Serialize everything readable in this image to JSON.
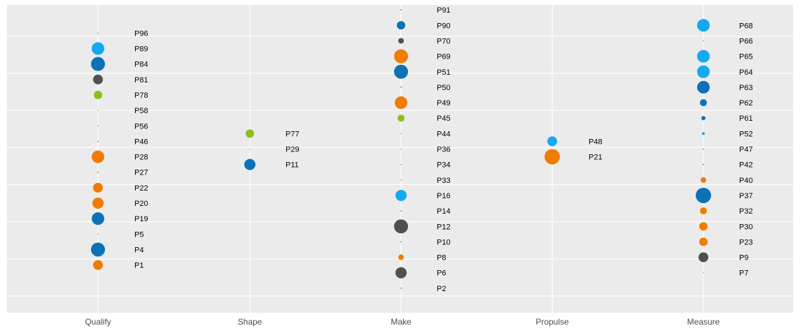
{
  "colors": {
    "panel_bg": "#ebebeb",
    "grid": "#ffffff",
    "orange": "#f07c00",
    "sky": "#12a9f5",
    "blue": "#0c72b8",
    "gray": "#505050",
    "green": "#8cbf1a"
  },
  "chart_data": {
    "type": "scatter",
    "title": "",
    "xlabel": "",
    "ylabel": "",
    "categories": [
      "Qualify",
      "Shape",
      "Make",
      "Propulse",
      "Measure"
    ],
    "ylim": [
      0,
      20.5
    ],
    "grid": true,
    "legend": "none",
    "series": [
      {
        "category": "Qualify",
        "points": [
          {
            "label": "P96",
            "y": 17.5,
            "size": 0.3,
            "color": "orange"
          },
          {
            "label": "P89",
            "y": 16.5,
            "size": 9,
            "color": "sky"
          },
          {
            "label": "P84",
            "y": 15.5,
            "size": 10,
            "color": "blue"
          },
          {
            "label": "P81",
            "y": 14.5,
            "size": 7,
            "color": "gray"
          },
          {
            "label": "P78",
            "y": 13.5,
            "size": 6,
            "color": "green"
          },
          {
            "label": "P58",
            "y": 12.5,
            "size": 0.3,
            "color": "green"
          },
          {
            "label": "P56",
            "y": 11.5,
            "size": 0.3,
            "color": "sky"
          },
          {
            "label": "P46",
            "y": 10.5,
            "size": 0.3,
            "color": "blue"
          },
          {
            "label": "P28",
            "y": 9.5,
            "size": 9,
            "color": "orange"
          },
          {
            "label": "P27",
            "y": 8.5,
            "size": 0.3,
            "color": "gray"
          },
          {
            "label": "P22",
            "y": 7.5,
            "size": 7,
            "color": "orange"
          },
          {
            "label": "P20",
            "y": 6.5,
            "size": 8,
            "color": "orange"
          },
          {
            "label": "P19",
            "y": 5.5,
            "size": 9,
            "color": "blue"
          },
          {
            "label": "P5",
            "y": 4.5,
            "size": 0.3,
            "color": "orange"
          },
          {
            "label": "P4",
            "y": 3.5,
            "size": 10,
            "color": "blue"
          },
          {
            "label": "P1",
            "y": 2.5,
            "size": 7,
            "color": "orange"
          }
        ]
      },
      {
        "category": "Shape",
        "points": [
          {
            "label": "P77",
            "y": 11,
            "size": 6,
            "color": "green"
          },
          {
            "label": "P29",
            "y": 10,
            "size": 0.3,
            "color": "orange"
          },
          {
            "label": "P11",
            "y": 9,
            "size": 8,
            "color": "blue"
          }
        ]
      },
      {
        "category": "Make",
        "points": [
          {
            "label": "P91",
            "y": 19,
            "size": 0.3,
            "color": "gray"
          },
          {
            "label": "P90",
            "y": 18,
            "size": 6,
            "color": "blue"
          },
          {
            "label": "P70",
            "y": 17,
            "size": 4,
            "color": "gray"
          },
          {
            "label": "P69",
            "y": 16,
            "size": 10,
            "color": "orange"
          },
          {
            "label": "P51",
            "y": 15,
            "size": 10,
            "color": "blue"
          },
          {
            "label": "P50",
            "y": 14,
            "size": 0.3,
            "color": "gray"
          },
          {
            "label": "P49",
            "y": 13,
            "size": 9,
            "color": "orange"
          },
          {
            "label": "P45",
            "y": 12,
            "size": 5,
            "color": "green"
          },
          {
            "label": "P44",
            "y": 11,
            "size": 0.3,
            "color": "orange"
          },
          {
            "label": "P36",
            "y": 10,
            "size": 0.3,
            "color": "orange"
          },
          {
            "label": "P34",
            "y": 9,
            "size": 0.3,
            "color": "orange"
          },
          {
            "label": "P33",
            "y": 8,
            "size": 0.3,
            "color": "orange"
          },
          {
            "label": "P16",
            "y": 7,
            "size": 8,
            "color": "sky"
          },
          {
            "label": "P14",
            "y": 6,
            "size": 0.3,
            "color": "gray"
          },
          {
            "label": "P12",
            "y": 5,
            "size": 10,
            "color": "gray"
          },
          {
            "label": "P10",
            "y": 4,
            "size": 0.3,
            "color": "gray"
          },
          {
            "label": "P8",
            "y": 3,
            "size": 4,
            "color": "orange"
          },
          {
            "label": "P6",
            "y": 2,
            "size": 8,
            "color": "gray"
          },
          {
            "label": "P2",
            "y": 1,
            "size": 0.3,
            "color": "blue"
          }
        ]
      },
      {
        "category": "Propulse",
        "points": [
          {
            "label": "P48",
            "y": 10.5,
            "size": 7,
            "color": "sky"
          },
          {
            "label": "P21",
            "y": 9.5,
            "size": 11,
            "color": "orange"
          }
        ]
      },
      {
        "category": "Measure",
        "points": [
          {
            "label": "P68",
            "y": 18,
            "size": 9,
            "color": "sky"
          },
          {
            "label": "P66",
            "y": 17,
            "size": 0.3,
            "color": "orange"
          },
          {
            "label": "P65",
            "y": 16,
            "size": 9,
            "color": "sky"
          },
          {
            "label": "P64",
            "y": 15,
            "size": 9,
            "color": "sky"
          },
          {
            "label": "P63",
            "y": 14,
            "size": 9,
            "color": "blue"
          },
          {
            "label": "P62",
            "y": 13,
            "size": 5,
            "color": "blue"
          },
          {
            "label": "P61",
            "y": 12,
            "size": 3,
            "color": "blue"
          },
          {
            "label": "P52",
            "y": 11,
            "size": 2,
            "color": "sky"
          },
          {
            "label": "P47",
            "y": 10,
            "size": 0.3,
            "color": "gray"
          },
          {
            "label": "P42",
            "y": 9,
            "size": 0.3,
            "color": "gray"
          },
          {
            "label": "P40",
            "y": 8,
            "size": 4,
            "color": "orange"
          },
          {
            "label": "P37",
            "y": 7,
            "size": 11,
            "color": "blue"
          },
          {
            "label": "P32",
            "y": 6,
            "size": 5,
            "color": "orange"
          },
          {
            "label": "P30",
            "y": 5,
            "size": 6,
            "color": "orange"
          },
          {
            "label": "P23",
            "y": 4,
            "size": 6,
            "color": "orange"
          },
          {
            "label": "P9",
            "y": 3,
            "size": 7,
            "color": "gray"
          },
          {
            "label": "P7",
            "y": 2,
            "size": 0.3,
            "color": "green"
          }
        ]
      }
    ]
  }
}
